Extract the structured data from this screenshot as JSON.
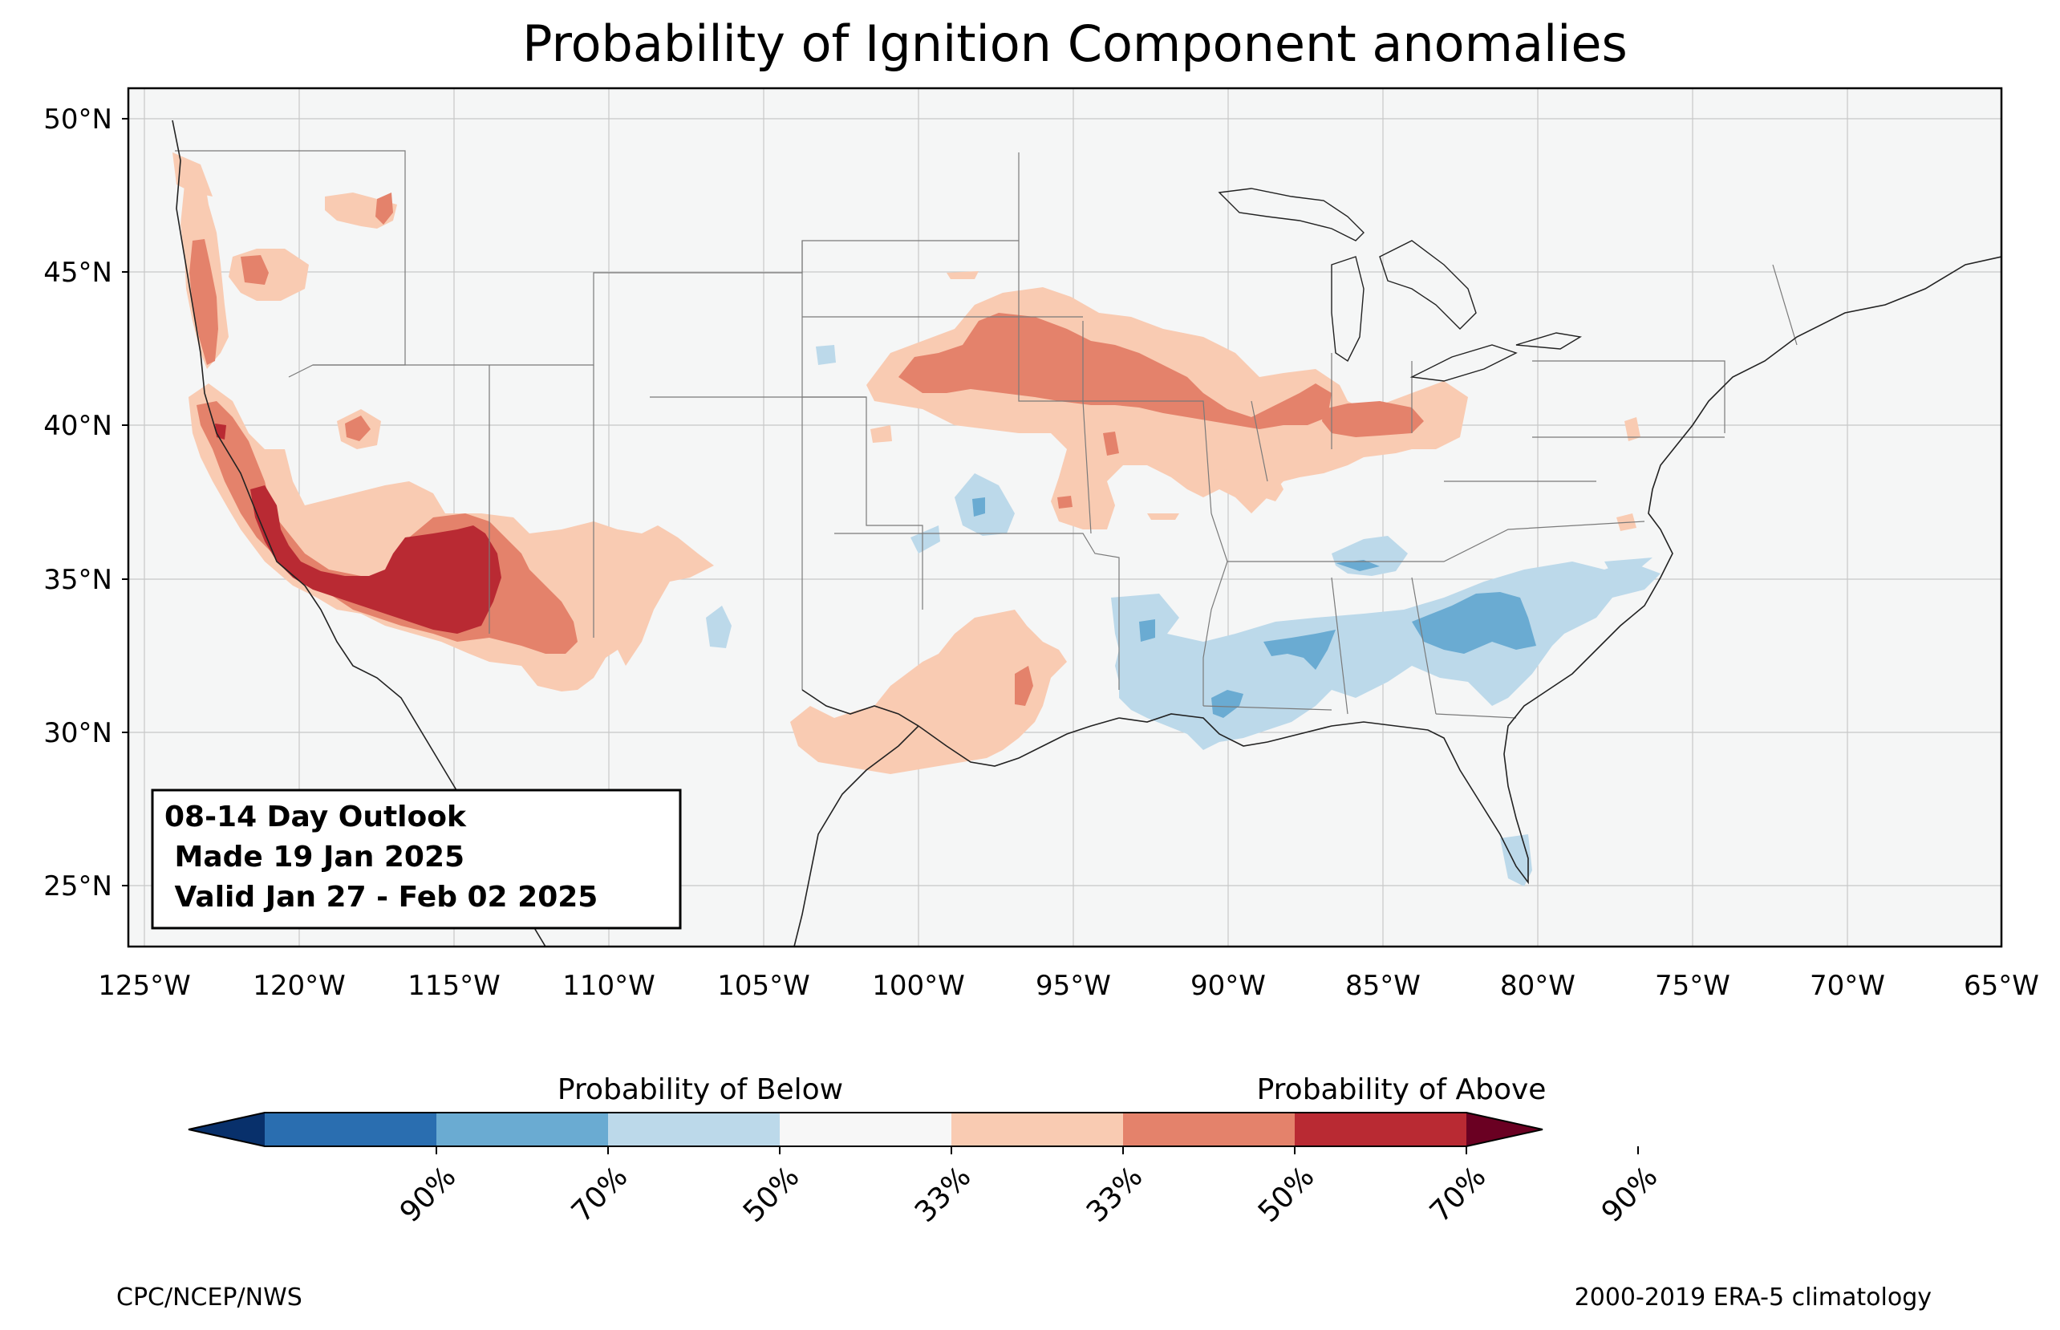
{
  "title": "Probability of Ignition Component anomalies",
  "map": {
    "lat_ticks": [
      "50°N",
      "45°N",
      "40°N",
      "35°N",
      "30°N",
      "25°N"
    ],
    "lon_ticks": [
      "125°W",
      "120°W",
      "115°W",
      "110°W",
      "105°W",
      "100°W",
      "95°W",
      "90°W",
      "85°W",
      "80°W",
      "75°W",
      "70°W",
      "65°W"
    ],
    "extent": {
      "lon_min": -125.5,
      "lon_max": -65,
      "lat_min": 23,
      "lat_max": 51
    }
  },
  "outlook_box": {
    "line1": "08-14 Day Outlook",
    "line2": " Made 19 Jan 2025",
    "line3": " Valid Jan 27 - Feb 02 2025"
  },
  "colorbar": {
    "below_label": "Probability of Below",
    "above_label": "Probability of Above",
    "tick_labels": [
      "90%",
      "70%",
      "50%",
      "33%",
      "33%",
      "50%",
      "70%",
      "90%"
    ],
    "colors": [
      "#053061",
      "#2166ac",
      "#4393c3",
      "#92c5de",
      "#d1e5f0",
      "#f7f7f7",
      "#fddbc7",
      "#f4a582",
      "#d6604d",
      "#b2182b",
      "#67001f"
    ],
    "segment_colors": [
      "#08306b",
      "#2a6eb0",
      "#6aabd2",
      "#bcd9ea",
      "#f7f7f7",
      "#f9cbb2",
      "#e4826b",
      "#b92a33",
      "#6a0022"
    ]
  },
  "footer": {
    "left": "CPC/NCEP/NWS",
    "right": "2000-2019 ERA-5 climatology"
  },
  "colors": {
    "above_33": "#f9cbb2",
    "above_50": "#e4826b",
    "above_70": "#b92a33",
    "below_33": "#bcd9ea",
    "below_50": "#6aabd2",
    "map_background": "#f5f6f6"
  }
}
